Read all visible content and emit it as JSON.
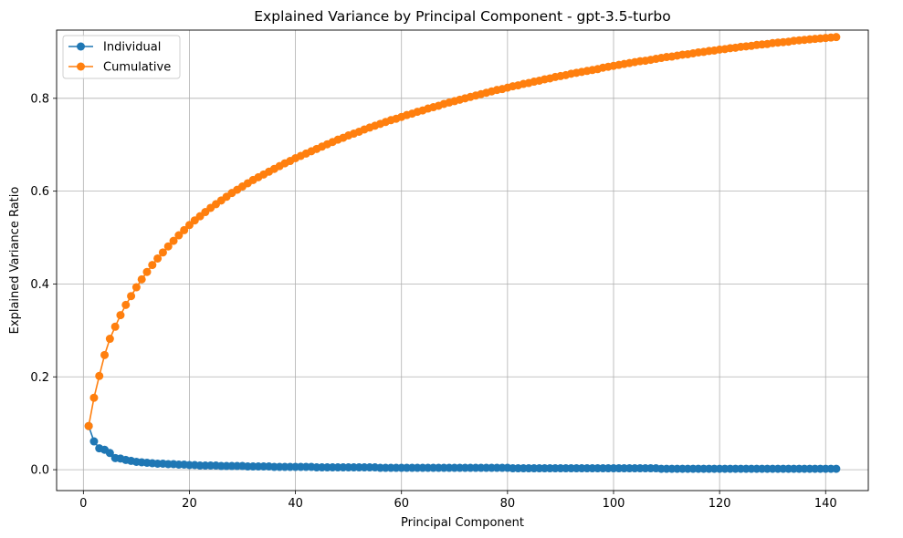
{
  "chart_data": {
    "type": "line",
    "title": "Explained Variance by Principal Component - gpt-3.5-turbo",
    "xlabel": "Principal Component",
    "ylabel": "Explained Variance Ratio",
    "xlim": [
      -5.05,
      148.05
    ],
    "ylim": [
      -0.045,
      0.947
    ],
    "xticks": [
      0,
      20,
      40,
      60,
      80,
      100,
      120,
      140
    ],
    "yticks": [
      0.0,
      0.2,
      0.4,
      0.6,
      0.8
    ],
    "grid": true,
    "legend_position": "top-left",
    "x_range": [
      1,
      142
    ],
    "series": [
      {
        "name": "Individual",
        "color": "#1f77b4",
        "values": [
          0.094,
          0.061,
          0.046,
          0.043,
          0.036,
          0.025,
          0.024,
          0.021,
          0.019,
          0.017,
          0.016,
          0.015,
          0.014,
          0.013,
          0.013,
          0.012,
          0.012,
          0.011,
          0.011,
          0.01,
          0.01,
          0.009,
          0.009,
          0.009,
          0.009,
          0.008,
          0.008,
          0.008,
          0.008,
          0.008,
          0.007,
          0.007,
          0.007,
          0.007,
          0.007,
          0.006,
          0.006,
          0.006,
          0.006,
          0.006,
          0.006,
          0.006,
          0.006,
          0.005,
          0.005,
          0.005,
          0.005,
          0.005,
          0.005,
          0.005,
          0.005,
          0.005,
          0.005,
          0.005,
          0.005,
          0.004,
          0.004,
          0.004,
          0.004,
          0.004,
          0.004,
          0.004,
          0.004,
          0.004,
          0.004,
          0.004,
          0.004,
          0.004,
          0.004,
          0.004,
          0.004,
          0.004,
          0.004,
          0.004,
          0.004,
          0.004,
          0.004,
          0.004,
          0.004,
          0.004,
          0.003,
          0.003,
          0.003,
          0.003,
          0.003,
          0.003,
          0.003,
          0.003,
          0.003,
          0.003,
          0.003,
          0.003,
          0.003,
          0.003,
          0.003,
          0.003,
          0.003,
          0.003,
          0.003,
          0.003,
          0.003,
          0.003,
          0.003,
          0.003,
          0.003,
          0.003,
          0.003,
          0.003,
          0.002,
          0.002,
          0.002,
          0.002,
          0.002,
          0.002,
          0.002,
          0.002,
          0.002,
          0.002,
          0.002,
          0.002,
          0.002,
          0.002,
          0.002,
          0.002,
          0.002,
          0.002,
          0.002,
          0.002,
          0.002,
          0.002,
          0.002,
          0.002,
          0.002,
          0.002,
          0.002,
          0.002,
          0.002,
          0.002,
          0.002,
          0.002,
          0.002,
          0.002
        ]
      },
      {
        "name": "Cumulative",
        "color": "#ff7f0e",
        "values": [
          0.094,
          0.155,
          0.202,
          0.247,
          0.282,
          0.308,
          0.333,
          0.355,
          0.374,
          0.393,
          0.41,
          0.426,
          0.441,
          0.455,
          0.468,
          0.481,
          0.493,
          0.505,
          0.516,
          0.527,
          0.537,
          0.546,
          0.555,
          0.564,
          0.572,
          0.58,
          0.588,
          0.596,
          0.603,
          0.61,
          0.617,
          0.624,
          0.63,
          0.636,
          0.642,
          0.648,
          0.654,
          0.66,
          0.665,
          0.671,
          0.676,
          0.681,
          0.686,
          0.691,
          0.696,
          0.701,
          0.706,
          0.711,
          0.715,
          0.72,
          0.724,
          0.728,
          0.733,
          0.737,
          0.741,
          0.745,
          0.749,
          0.753,
          0.756,
          0.76,
          0.764,
          0.767,
          0.771,
          0.774,
          0.778,
          0.781,
          0.784,
          0.788,
          0.791,
          0.794,
          0.797,
          0.8,
          0.803,
          0.806,
          0.809,
          0.812,
          0.815,
          0.818,
          0.82,
          0.823,
          0.826,
          0.828,
          0.831,
          0.833,
          0.836,
          0.838,
          0.841,
          0.843,
          0.846,
          0.848,
          0.85,
          0.853,
          0.855,
          0.857,
          0.859,
          0.861,
          0.863,
          0.866,
          0.868,
          0.87,
          0.872,
          0.874,
          0.876,
          0.878,
          0.88,
          0.881,
          0.883,
          0.885,
          0.887,
          0.889,
          0.89,
          0.892,
          0.894,
          0.895,
          0.897,
          0.899,
          0.9,
          0.902,
          0.903,
          0.905,
          0.906,
          0.908,
          0.909,
          0.911,
          0.912,
          0.913,
          0.915,
          0.916,
          0.917,
          0.919,
          0.92,
          0.921,
          0.922,
          0.924,
          0.925,
          0.926,
          0.927,
          0.928,
          0.929,
          0.93,
          0.931,
          0.932
        ]
      }
    ]
  }
}
